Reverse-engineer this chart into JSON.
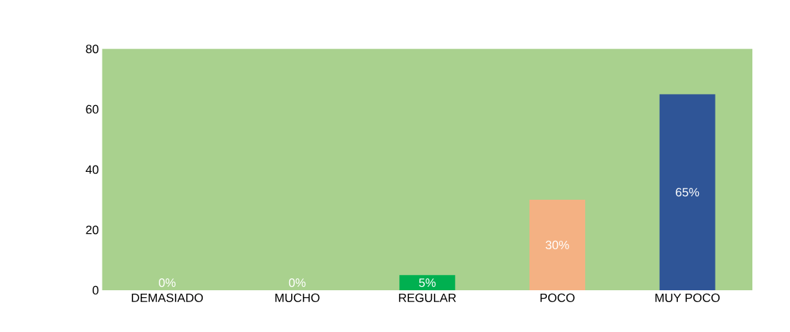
{
  "chart_data": {
    "type": "bar",
    "categories": [
      "DEMASIADO",
      "MUCHO",
      "REGULAR",
      "POCO",
      "MUY POCO"
    ],
    "values": [
      0,
      0,
      5,
      30,
      65
    ],
    "colors": [
      "#3f5f2a",
      "#203f75",
      "#00b050",
      "#f4b183",
      "#2f5597"
    ],
    "value_labels": [
      "0%",
      "0%",
      "5%",
      "30%",
      "65%"
    ],
    "ylim": [
      0,
      80
    ],
    "yticks": [
      0,
      20,
      40,
      60,
      80
    ]
  }
}
